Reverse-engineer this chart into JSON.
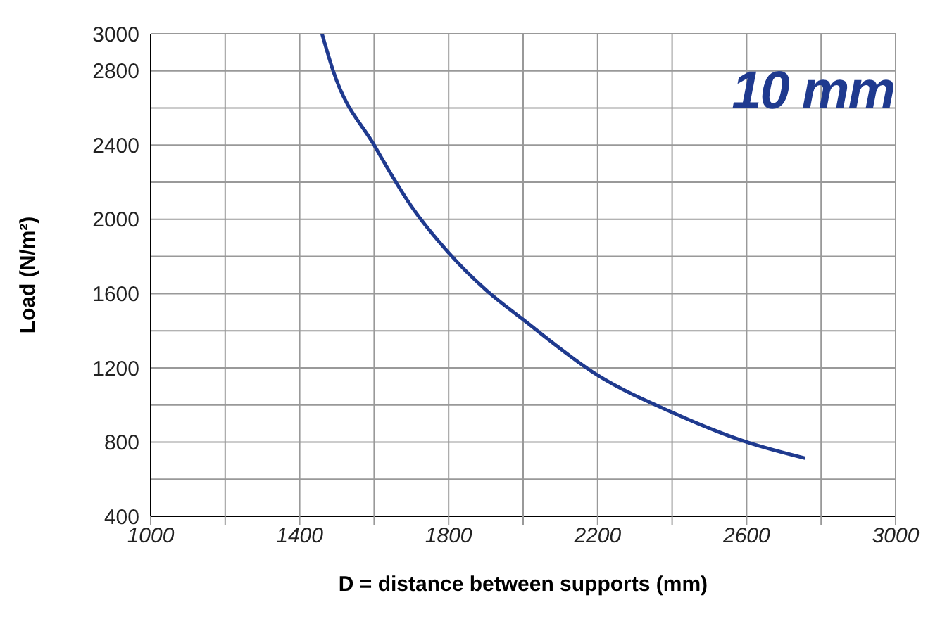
{
  "chart_data": {
    "type": "line",
    "xlabel": "D = distance between supports (mm)",
    "ylabel": "Load (N/m²)",
    "annotations": [
      "10 mm"
    ],
    "x": [
      1460,
      1490,
      1600,
      1700,
      1800,
      1900,
      2000,
      2200,
      2400,
      2600,
      2757
    ],
    "series": [
      {
        "color": "#1f3a8f",
        "values": [
          3000,
          2800,
          2400,
          2070,
          1820,
          1620,
          1460,
          1160,
          960,
          800,
          713
        ]
      }
    ],
    "xlim": [
      1000,
      3000
    ],
    "xticks": [
      1000,
      {
        "value": 1200,
        "label": null
      },
      1400,
      {
        "value": 1600,
        "label": null
      },
      1800,
      {
        "value": 2000,
        "label": null
      },
      2200,
      {
        "value": 2400,
        "label": null
      },
      2600,
      {
        "value": 2800,
        "label": null
      },
      3000
    ],
    "ylim": [
      400,
      3000
    ],
    "yticks": [
      400,
      {
        "value": 600,
        "label": null
      },
      800,
      {
        "value": 1000,
        "label": null
      },
      1200,
      {
        "value": 1400,
        "label": null
      },
      1600,
      {
        "value": 1800,
        "label": null
      },
      2000,
      {
        "value": 2200,
        "label": null
      },
      2400,
      {
        "value": 2600,
        "label": null
      },
      2800,
      3000
    ],
    "grid": true,
    "legend": false,
    "marker": "none",
    "line_style": "solid"
  }
}
